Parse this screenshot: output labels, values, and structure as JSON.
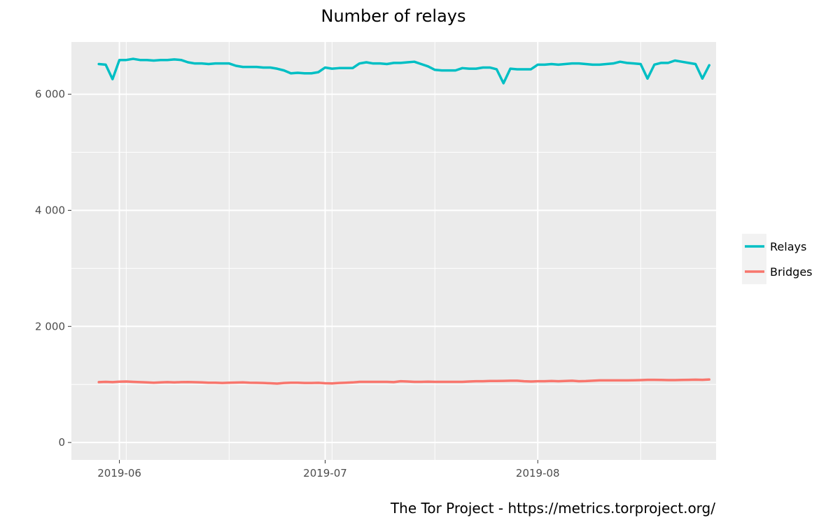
{
  "chart_data": {
    "type": "line",
    "title": "Number of relays",
    "caption": "The Tor Project - https://metrics.torproject.org/",
    "xlabel": "",
    "ylabel": "",
    "ylim": [
      -300,
      6900
    ],
    "xlim": [
      "2019-05-25",
      "2019-08-27"
    ],
    "y_ticks": [
      0,
      2000,
      4000,
      6000
    ],
    "y_tick_labels": [
      "0",
      "2 000",
      "4 000",
      "6 000"
    ],
    "x_ticks": [
      "2019-06-01",
      "2019-07-01",
      "2019-08-01"
    ],
    "x_tick_labels": [
      "2019-06",
      "2019-07",
      "2019-08"
    ],
    "grid": true,
    "legend_position": "right",
    "x_start": "2019-05-29",
    "series": [
      {
        "name": "Relays",
        "color": "#00BFC4",
        "values": [
          6520,
          6510,
          6260,
          6590,
          6590,
          6610,
          6590,
          6590,
          6580,
          6590,
          6590,
          6600,
          6590,
          6550,
          6530,
          6530,
          6520,
          6530,
          6530,
          6530,
          6490,
          6470,
          6470,
          6470,
          6460,
          6460,
          6440,
          6410,
          6360,
          6370,
          6360,
          6360,
          6380,
          6460,
          6440,
          6450,
          6450,
          6450,
          6530,
          6550,
          6530,
          6530,
          6520,
          6540,
          6540,
          6550,
          6560,
          6520,
          6480,
          6420,
          6410,
          6410,
          6410,
          6450,
          6440,
          6440,
          6460,
          6460,
          6430,
          6190,
          6440,
          6430,
          6430,
          6430,
          6510,
          6510,
          6520,
          6510,
          6520,
          6530,
          6530,
          6520,
          6510,
          6510,
          6520,
          6530,
          6560,
          6540,
          6530,
          6520,
          6270,
          6510,
          6540,
          6540,
          6580,
          6560,
          6540,
          6520,
          6270,
          6500
        ]
      },
      {
        "name": "Bridges",
        "color": "#F8766D",
        "values": [
          1040,
          1045,
          1040,
          1048,
          1050,
          1045,
          1040,
          1035,
          1030,
          1035,
          1040,
          1035,
          1040,
          1042,
          1038,
          1035,
          1030,
          1030,
          1025,
          1030,
          1032,
          1035,
          1030,
          1028,
          1025,
          1020,
          1015,
          1025,
          1030,
          1030,
          1025,
          1025,
          1028,
          1020,
          1018,
          1025,
          1030,
          1035,
          1045,
          1045,
          1045,
          1045,
          1045,
          1040,
          1055,
          1050,
          1045,
          1045,
          1048,
          1045,
          1045,
          1045,
          1045,
          1045,
          1050,
          1055,
          1055,
          1060,
          1060,
          1062,
          1065,
          1065,
          1055,
          1050,
          1055,
          1055,
          1060,
          1055,
          1060,
          1065,
          1055,
          1058,
          1065,
          1070,
          1070,
          1070,
          1070,
          1070,
          1072,
          1075,
          1080,
          1080,
          1078,
          1075,
          1075,
          1078,
          1080,
          1082,
          1080,
          1085
        ]
      }
    ]
  }
}
